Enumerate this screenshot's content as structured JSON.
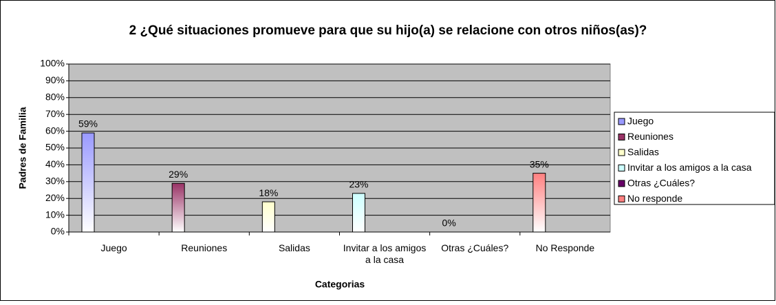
{
  "chart_data": {
    "type": "bar",
    "title": "2 ¿Qué situaciones promueve para que su hijo(a) se relacione con otros niños(as)?",
    "x_label": "Categorias",
    "y_label": "Padres de Familia",
    "categories": [
      "Juego",
      "Reuniones",
      "Salidas",
      "Invitar a los amigos a la casa",
      "Otras ¿Cuáles?",
      "No Responde"
    ],
    "series": [
      {
        "name": "Juego",
        "color": "#9999ff",
        "values": [
          59,
          null,
          null,
          null,
          null,
          null
        ],
        "value_labels": [
          "59%",
          null,
          null,
          null,
          null,
          null
        ]
      },
      {
        "name": "Reuniones",
        "color": "#993366",
        "values": [
          null,
          29,
          null,
          null,
          null,
          null
        ],
        "value_labels": [
          null,
          "29%",
          null,
          null,
          null,
          null
        ]
      },
      {
        "name": "Salidas",
        "color": "#ffffcc",
        "values": [
          null,
          null,
          18,
          null,
          null,
          null
        ],
        "value_labels": [
          null,
          null,
          "18%",
          null,
          null,
          null
        ]
      },
      {
        "name": "Invitar a los amigos a la casa",
        "color": "#ccffff",
        "values": [
          null,
          null,
          null,
          23,
          null,
          null
        ],
        "value_labels": [
          null,
          null,
          null,
          "23%",
          null,
          null
        ]
      },
      {
        "name": "Otras ¿Cuáles?",
        "color": "#660066",
        "values": [
          null,
          null,
          null,
          null,
          0,
          null
        ],
        "value_labels": [
          null,
          null,
          null,
          null,
          "0%",
          null
        ]
      },
      {
        "name": "No responde",
        "color": "#ff8080",
        "values": [
          null,
          null,
          null,
          null,
          null,
          35
        ],
        "value_labels": [
          null,
          null,
          null,
          null,
          null,
          "35%"
        ]
      }
    ],
    "ylim": [
      0,
      100
    ],
    "yticks": [
      {
        "value": 0,
        "label": "0%"
      },
      {
        "value": 10,
        "label": "10%"
      },
      {
        "value": 20,
        "label": "20%"
      },
      {
        "value": 30,
        "label": "30%"
      },
      {
        "value": 40,
        "label": "40%"
      },
      {
        "value": 50,
        "label": "50%"
      },
      {
        "value": 60,
        "label": "60%"
      },
      {
        "value": 70,
        "label": "70%"
      },
      {
        "value": 80,
        "label": "80%"
      },
      {
        "value": 90,
        "label": "90%"
      },
      {
        "value": 100,
        "label": "100%"
      }
    ],
    "grid": true,
    "legend": "right"
  }
}
